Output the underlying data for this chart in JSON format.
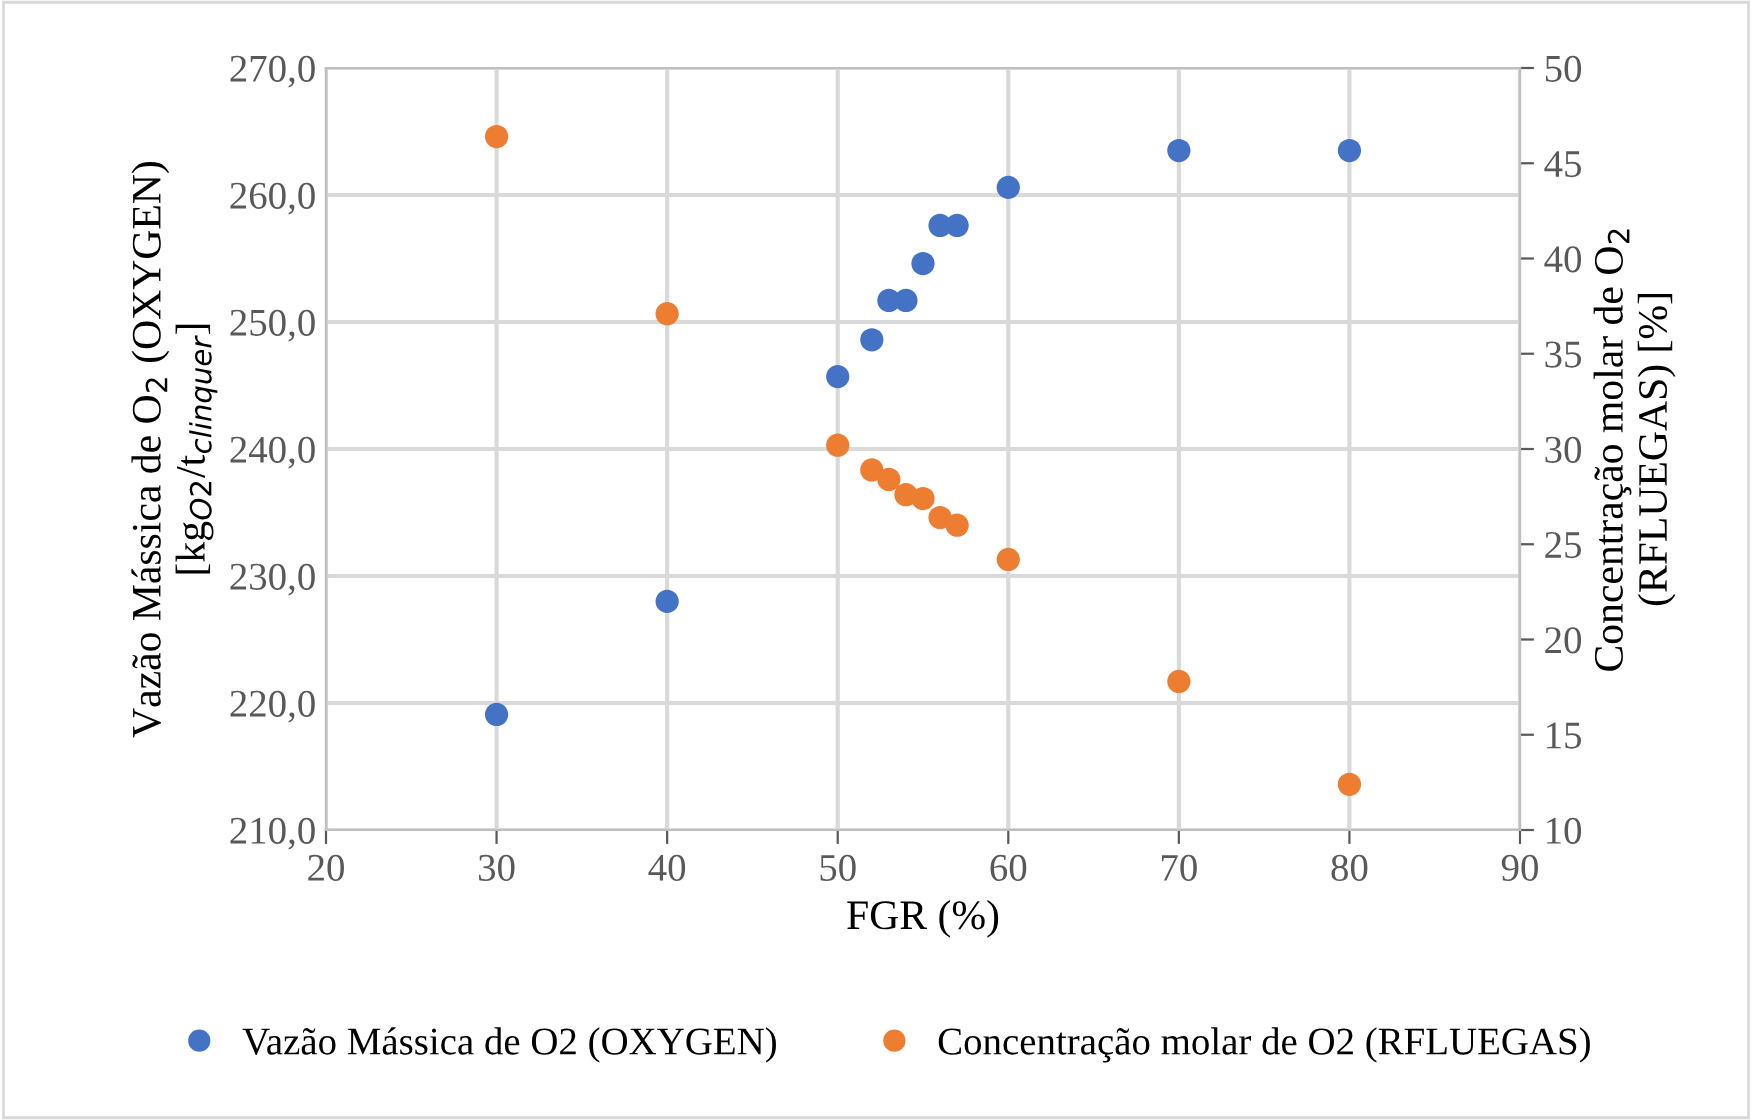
{
  "chart_data": {
    "type": "scatter",
    "xlabel": "FGR (%)",
    "ylabel": "Vazão Mássica de O$_{2}$ (OXYGEN)\n[kg$_{O2}$/t$_{clinquer}$]",
    "y2label": "Concentração molar de O$_{2}$\n(RFLUEGAS) [%]",
    "x": [
      30,
      40,
      50,
      52,
      53,
      54,
      55,
      56,
      57,
      60,
      70,
      80
    ],
    "series": [
      {
        "name": "Vazão Mássica de O2 (OXYGEN)",
        "color": "#4472c4",
        "values": [
          219.1,
          228.0,
          245.7,
          248.6,
          251.7,
          251.7,
          254.6,
          257.6,
          257.6,
          260.6,
          263.5,
          263.5
        ]
      },
      {
        "name": "Concentração molar de O2 (RFLUEGAS)",
        "color": "#ed7d31",
        "axis": "y2",
        "values": [
          46.4,
          37.1,
          30.2,
          28.9,
          28.4,
          27.6,
          27.4,
          26.4,
          26.0,
          24.2,
          17.8,
          12.4
        ]
      }
    ],
    "xlim": [
      20,
      90
    ],
    "xticks": [
      20,
      30,
      40,
      50,
      60,
      70,
      80,
      90
    ],
    "ylim": [
      210,
      270
    ],
    "yticks": [
      {
        "value": 210,
        "label": "210,0"
      },
      {
        "value": 220,
        "label": "220,0"
      },
      {
        "value": 230,
        "label": "230,0"
      },
      {
        "value": 240,
        "label": "240,0"
      },
      {
        "value": 250,
        "label": "250,0"
      },
      {
        "value": 260,
        "label": "260,0"
      },
      {
        "value": 270,
        "label": "270,0"
      }
    ],
    "y2lim": [
      10,
      50
    ],
    "y2ticks": [
      10,
      15,
      20,
      25,
      30,
      35,
      40,
      45,
      50
    ],
    "grid": true,
    "legend": "bottom",
    "marker": "circle"
  }
}
